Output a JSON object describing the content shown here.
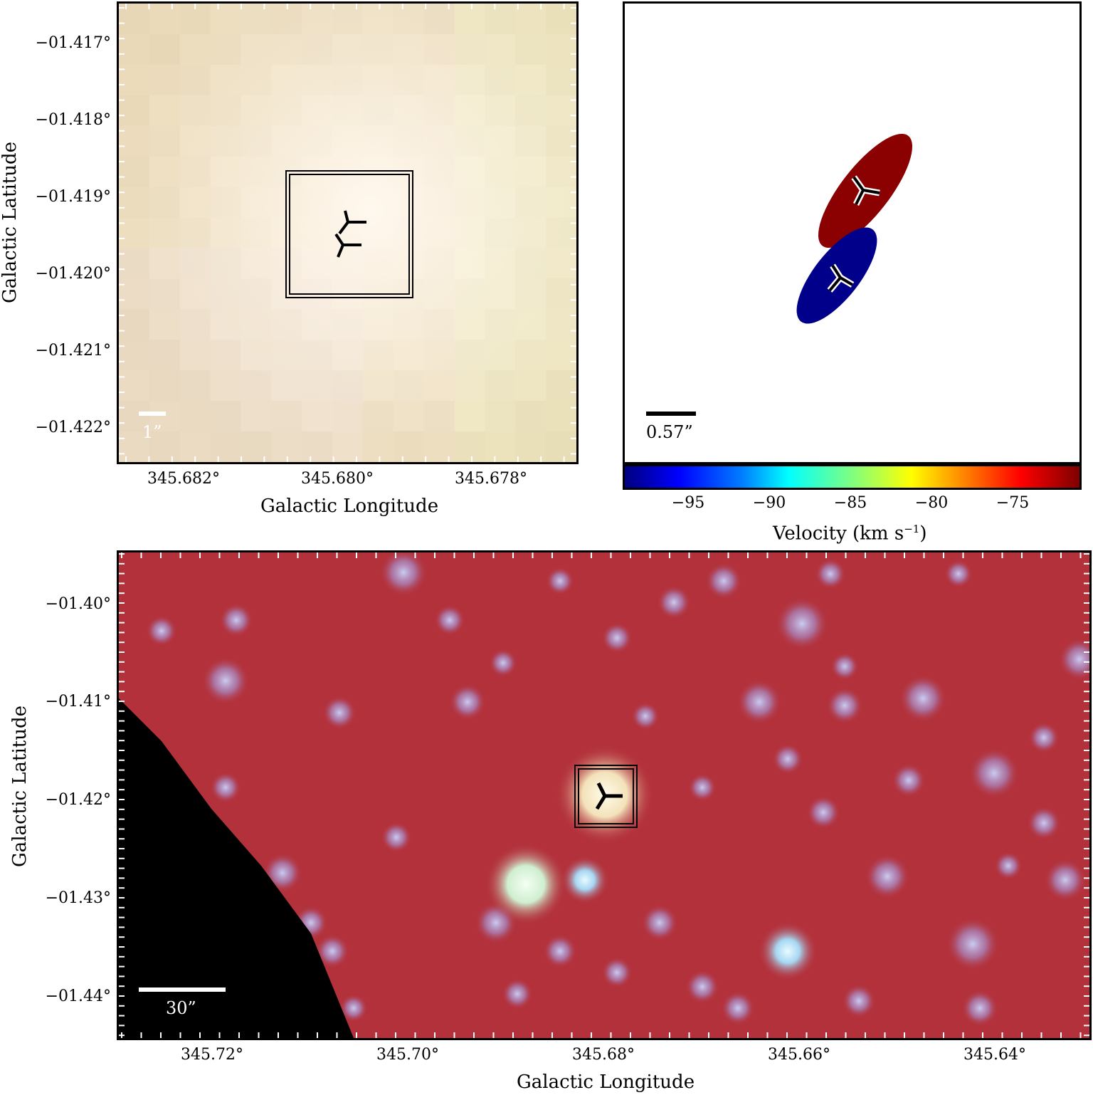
{
  "top_left": {
    "y_ticks": [
      "−01.417°",
      "−01.418°",
      "−01.419°",
      "−01.420°",
      "−01.421°",
      "−01.422°"
    ],
    "x_ticks": [
      "345.682°",
      "345.680°",
      "345.678°"
    ],
    "y_title": "Galactic Latitude",
    "x_title": "Galactic Longitude",
    "scale_bar": "1”"
  },
  "top_right": {
    "scale_bar": "0.57”",
    "colorbar_ticks": [
      "−95",
      "−90",
      "−85",
      "−80",
      "−75"
    ],
    "colorbar_title": "Velocity (km s",
    "colorbar_title_sup": "−1",
    "colorbar_title_end": ")",
    "ellipse_colors": {
      "red": "#8b0000",
      "blue": "#00008b"
    }
  },
  "bottom": {
    "y_ticks": [
      "−01.40°",
      "−01.41°",
      "−01.42°",
      "−01.43°",
      "−01.44°"
    ],
    "x_ticks": [
      "345.72°",
      "345.70°",
      "345.68°",
      "345.66°",
      "345.64°"
    ],
    "y_title": "Galactic Latitude",
    "x_title": "Galactic Longitude",
    "scale_bar": "30”"
  }
}
